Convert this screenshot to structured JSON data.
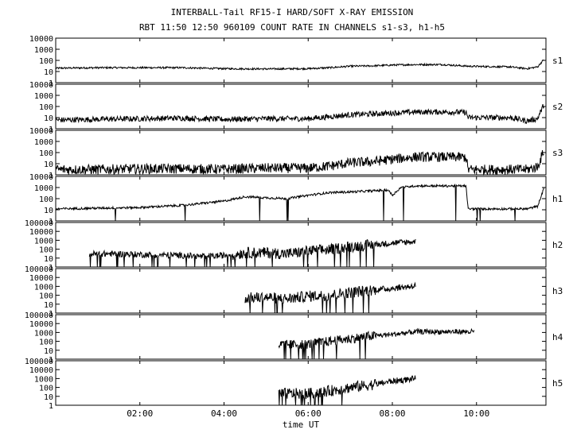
{
  "title_line1": "INTERBALL-Tail RF15-I HARD/SOFT X-RAY EMISSION",
  "title_line2": "RBT 11:50 12:50 960109  COUNT RATE IN CHANNELS s1-s3, h1-h5",
  "chart_data": {
    "type": "line",
    "title": "INTERBALL-Tail RF15-I HARD/SOFT X-RAY EMISSION",
    "subtitle": "RBT 11:50 12:50 960109  COUNT RATE IN CHANNELS s1-s3, h1-h5",
    "xlabel": "time UT",
    "x_unit": "hours UT",
    "xlim": [
      0,
      11.65
    ],
    "x_ticks": [
      2,
      4,
      6,
      8,
      10
    ],
    "x_tick_labels": [
      "02:00",
      "04:00",
      "06:00",
      "08:00",
      "10:00"
    ],
    "y_scale": "log",
    "grid": false,
    "legend": "none",
    "panels": [
      {
        "name": "s1",
        "ylim": [
          1,
          10000
        ],
        "y_tick_labels": [
          "10000",
          "1000",
          "100",
          "10",
          "1"
        ],
        "points": [
          [
            0,
            20
          ],
          [
            1,
            22
          ],
          [
            2,
            22
          ],
          [
            3,
            22
          ],
          [
            4,
            18
          ],
          [
            5,
            17
          ],
          [
            6,
            18
          ],
          [
            6.5,
            22
          ],
          [
            7,
            30
          ],
          [
            7.5,
            32
          ],
          [
            8,
            38
          ],
          [
            8.55,
            42
          ],
          [
            9.2,
            42
          ],
          [
            9.8,
            30
          ],
          [
            10.2,
            28
          ],
          [
            10.8,
            26
          ],
          [
            11.2,
            18
          ],
          [
            11.45,
            26
          ],
          [
            11.6,
            120
          ]
        ],
        "noise": 0.08
      },
      {
        "name": "s2",
        "ylim": [
          1,
          10000
        ],
        "y_tick_labels": [
          "10000",
          "1000",
          "100",
          "10",
          "1"
        ],
        "points": [
          [
            0,
            6
          ],
          [
            1,
            7
          ],
          [
            2,
            8
          ],
          [
            3,
            9
          ],
          [
            4,
            7
          ],
          [
            5,
            8
          ],
          [
            6,
            8
          ],
          [
            6.5,
            12
          ],
          [
            7,
            18
          ],
          [
            7.6,
            22
          ],
          [
            8.55,
            32
          ],
          [
            9.2,
            32
          ],
          [
            9.75,
            30
          ],
          [
            9.8,
            10
          ],
          [
            10.3,
            10
          ],
          [
            10.8,
            10
          ],
          [
            11.2,
            5
          ],
          [
            11.45,
            8
          ],
          [
            11.6,
            150
          ]
        ],
        "noise": 0.25
      },
      {
        "name": "s3",
        "ylim": [
          1,
          10000
        ],
        "y_tick_labels": [
          "10000",
          "1000",
          "100",
          "10",
          "1"
        ],
        "points": [
          [
            0,
            3
          ],
          [
            1,
            3
          ],
          [
            2,
            3.5
          ],
          [
            3,
            3.5
          ],
          [
            4,
            3.2
          ],
          [
            5,
            4
          ],
          [
            6,
            4
          ],
          [
            6.5,
            6
          ],
          [
            7,
            12
          ],
          [
            7.5,
            15
          ],
          [
            8,
            25
          ],
          [
            8.55,
            40
          ],
          [
            9.2,
            40
          ],
          [
            9.75,
            38
          ],
          [
            9.8,
            3
          ],
          [
            10.3,
            3
          ],
          [
            10.8,
            3
          ],
          [
            11.2,
            3
          ],
          [
            11.45,
            5
          ],
          [
            11.6,
            150
          ]
        ],
        "noise": 0.45
      },
      {
        "name": "h1",
        "ylim": [
          1,
          10000
        ],
        "y_tick_labels": [
          "10000",
          "1000",
          "100",
          "10",
          "1"
        ],
        "points": [
          [
            0,
            12
          ],
          [
            1,
            14
          ],
          [
            2,
            16
          ],
          [
            3,
            25
          ],
          [
            4,
            60
          ],
          [
            4.5,
            150
          ],
          [
            5,
            120
          ],
          [
            5.5,
            100
          ],
          [
            6,
            200
          ],
          [
            6.5,
            350
          ],
          [
            7,
            400
          ],
          [
            7.5,
            500
          ],
          [
            7.9,
            600
          ],
          [
            8,
            200
          ],
          [
            8.2,
            1000
          ],
          [
            8.55,
            1400
          ],
          [
            9.2,
            1400
          ],
          [
            9.75,
            1400
          ],
          [
            9.8,
            12
          ],
          [
            10.3,
            12
          ],
          [
            10.8,
            12
          ],
          [
            11.2,
            12
          ],
          [
            11.45,
            20
          ],
          [
            11.6,
            800
          ]
        ],
        "noise": 0.1
      },
      {
        "name": "h2",
        "ylim": [
          1,
          100000
        ],
        "y_tick_labels": [
          "100000",
          "10000",
          "1000",
          "100",
          "10",
          "1"
        ],
        "points": [
          [
            0.8,
            30
          ],
          [
            1.5,
            30
          ],
          [
            2,
            25
          ],
          [
            3,
            20
          ],
          [
            3.5,
            15
          ],
          [
            4,
            20
          ],
          [
            4.5,
            40
          ],
          [
            5,
            40
          ],
          [
            5.5,
            30
          ],
          [
            6,
            60
          ],
          [
            6.5,
            90
          ],
          [
            7,
            200
          ],
          [
            7.5,
            300
          ],
          [
            8,
            500
          ],
          [
            8.55,
            700
          ]
        ],
        "noise": 0.35
      },
      {
        "name": "h3",
        "ylim": [
          1,
          100000
        ],
        "y_tick_labels": [
          "100000",
          "10000",
          "1000",
          "100",
          "10",
          "1"
        ],
        "points": [
          [
            4.5,
            50
          ],
          [
            5,
            60
          ],
          [
            5.5,
            40
          ],
          [
            6,
            80
          ],
          [
            6.5,
            100
          ],
          [
            7,
            200
          ],
          [
            7.5,
            400
          ],
          [
            8,
            600
          ],
          [
            8.55,
            1200
          ]
        ],
        "noise": 0.35
      },
      {
        "name": "h4",
        "ylim": [
          1,
          100000
        ],
        "y_tick_labels": [
          "100000",
          "10000",
          "1000",
          "100",
          "10",
          "1"
        ],
        "points": [
          [
            5.3,
            40
          ],
          [
            6,
            50
          ],
          [
            6.5,
            100
          ],
          [
            7,
            200
          ],
          [
            7.5,
            400
          ],
          [
            8,
            600
          ],
          [
            8.55,
            1200
          ],
          [
            9.2,
            1200
          ],
          [
            9.95,
            1200
          ]
        ],
        "noise": 0.3
      },
      {
        "name": "h5",
        "ylim": [
          1,
          100000
        ],
        "y_tick_labels": [
          "100000",
          "10000",
          "1000",
          "100",
          "10",
          "1"
        ],
        "points": [
          [
            5.3,
            20
          ],
          [
            6,
            20
          ],
          [
            6.5,
            40
          ],
          [
            7,
            100
          ],
          [
            7.5,
            200
          ],
          [
            8,
            500
          ],
          [
            8.55,
            1000
          ]
        ],
        "noise": 0.35
      }
    ]
  }
}
